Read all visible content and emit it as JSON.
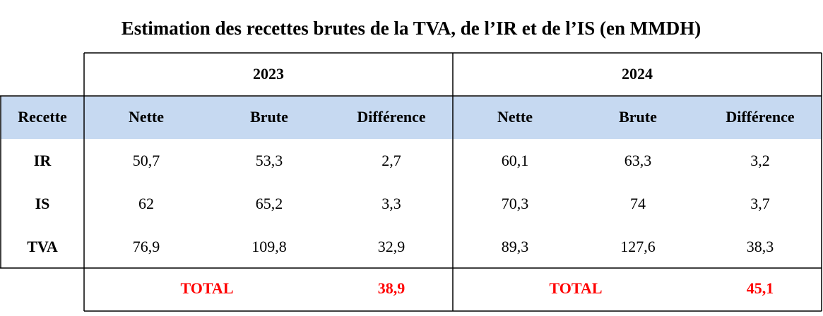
{
  "header": {
    "title": "Estimation des recettes brutes de la TVA, de l’IR et de l’IS (en MMDH)"
  },
  "table": {
    "years": [
      "2023",
      "2024"
    ],
    "columns": [
      "Recette",
      "Nette",
      "Brute",
      "Différence",
      "Nette",
      "Brute",
      "Différence"
    ],
    "rows": [
      [
        "IR",
        "50,7",
        "53,3",
        "2,7",
        "60,1",
        "63,3",
        "3,2"
      ],
      [
        "IS",
        "62",
        "65,2",
        "3,3",
        "70,3",
        "74",
        "3,7"
      ],
      [
        "TVA",
        "76,9",
        "109,8",
        "32,9",
        "89,3",
        "127,6",
        "38,3"
      ]
    ],
    "totals": [
      {
        "label": "TOTAL",
        "value": "38,9"
      },
      {
        "label": "TOTAL",
        "value": "45,1"
      }
    ]
  }
}
